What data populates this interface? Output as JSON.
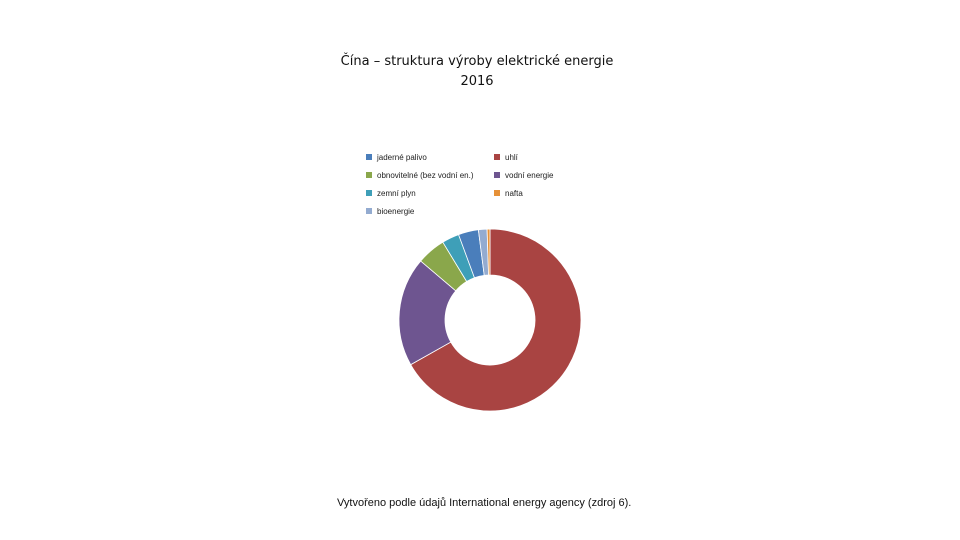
{
  "chart_data": {
    "type": "pie",
    "style": "donut",
    "title": "Čína – struktura výroby elektrické energie",
    "subtitle": "2016",
    "legend_position": "top",
    "categories": [
      "jaderné palivo",
      "uhlí",
      "obnovitelné (bez vodní en.)",
      "vodní energie",
      "zemní plyn",
      "nafta",
      "bioenergie"
    ],
    "values": [
      3.5,
      65.5,
      5.0,
      19.0,
      3.0,
      0.5,
      1.5
    ],
    "colors": [
      "#4A7EBB",
      "#A94442",
      "#8AA74B",
      "#6E5590",
      "#3E9FB8",
      "#E69138",
      "#93ABD0"
    ],
    "draw_order": [
      1,
      3,
      2,
      4,
      0,
      6,
      5
    ],
    "xlabel": "",
    "ylabel": ""
  },
  "legend": {
    "items": [
      {
        "label": "jaderné palivo",
        "color": "#4A7EBB"
      },
      {
        "label": "uhlí",
        "color": "#A94442"
      },
      {
        "label": "obnovitelné (bez vodní en.)",
        "color": "#8AA74B"
      },
      {
        "label": "vodní energie",
        "color": "#6E5590"
      },
      {
        "label": "zemní plyn",
        "color": "#3E9FB8"
      },
      {
        "label": "nafta",
        "color": "#E69138"
      },
      {
        "label": "bioenergie",
        "color": "#93ABD0"
      }
    ]
  },
  "caption": "Vytvořeno podle údajů International energy agency (zdroj 6)."
}
